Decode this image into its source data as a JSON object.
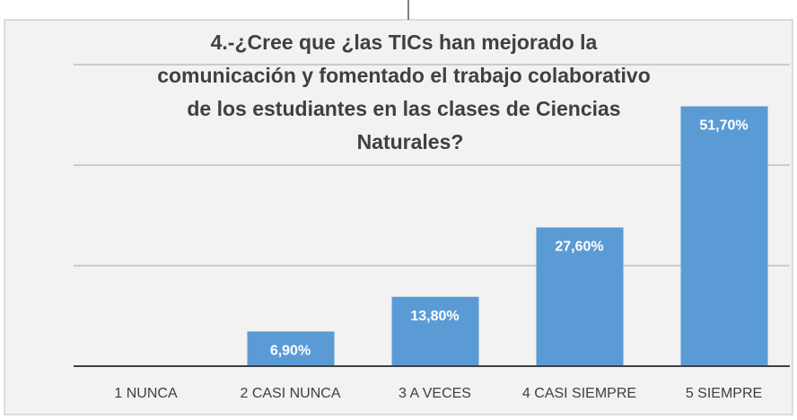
{
  "chart_data": {
    "type": "bar",
    "title": [
      "4.-¿Cree que  ¿las TICs han mejorado la",
      "comunicación y fomentado el trabajo colaborativo",
      "de los estudiantes en las clases de Ciencias",
      "Naturales?"
    ],
    "categories": [
      "1 NUNCA",
      "2 CASI NUNCA",
      "3 A VECES",
      "4 CASI SIEMPRE",
      "5 SIEMPRE"
    ],
    "values": [
      0,
      6.9,
      13.8,
      27.6,
      51.7
    ],
    "value_labels": [
      null,
      "6,90%",
      "13,80%",
      "27,60%",
      "51,70%"
    ],
    "color": "#5b9bd5",
    "ylim": [
      0,
      60
    ],
    "yticks": [
      0,
      20,
      40,
      60
    ],
    "grid": true
  }
}
